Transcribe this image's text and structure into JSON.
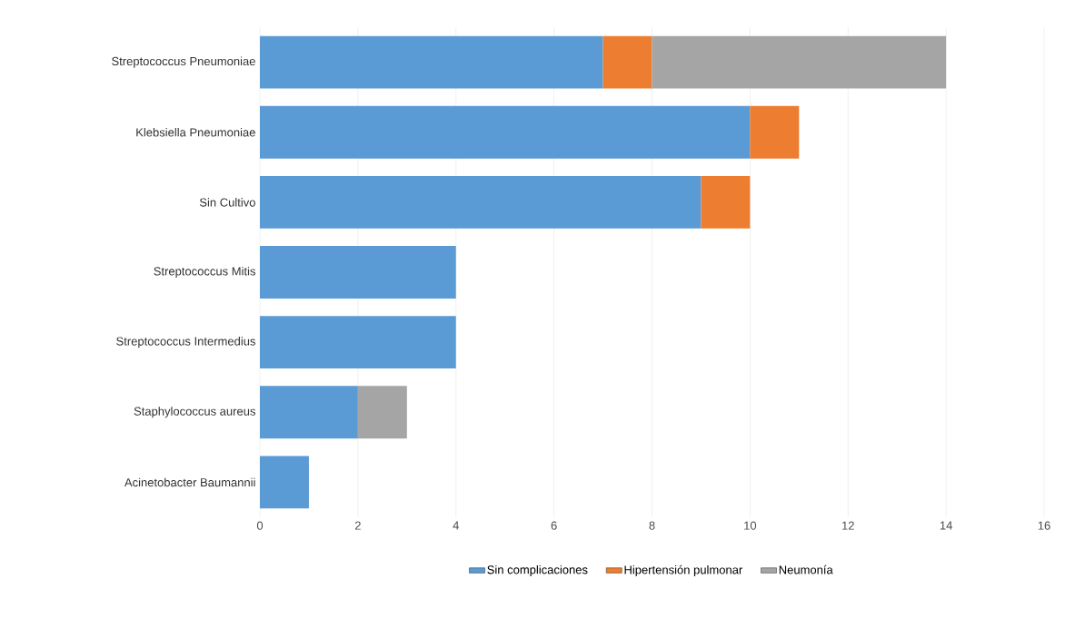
{
  "chart_data": {
    "type": "bar",
    "orientation": "horizontal",
    "stacked": true,
    "categories": [
      "Streptococcus Pneumoniae",
      "Klebsiella Pneumoniae",
      "Sin Cultivo",
      "Streptococcus Mitis",
      "Streptococcus Intermedius",
      "Staphylococcus aureus",
      "Acinetobacter Baumannii"
    ],
    "series": [
      {
        "name": "Sin complicaciones",
        "color": "#5b9bd5",
        "values": [
          7,
          10,
          9,
          4,
          4,
          2,
          1
        ]
      },
      {
        "name": "Hipertensión pulmonar",
        "color": "#ed7d31",
        "values": [
          1,
          1,
          1,
          null,
          null,
          null,
          null
        ]
      },
      {
        "name": "Neumonía",
        "color": "#a5a5a5",
        "values": [
          6,
          null,
          null,
          null,
          null,
          1,
          null
        ]
      }
    ],
    "xlim": [
      0,
      16
    ],
    "xticks": [
      0,
      2,
      4,
      6,
      8,
      10,
      12,
      14,
      16
    ],
    "grid": "x",
    "legend": "bottom"
  }
}
